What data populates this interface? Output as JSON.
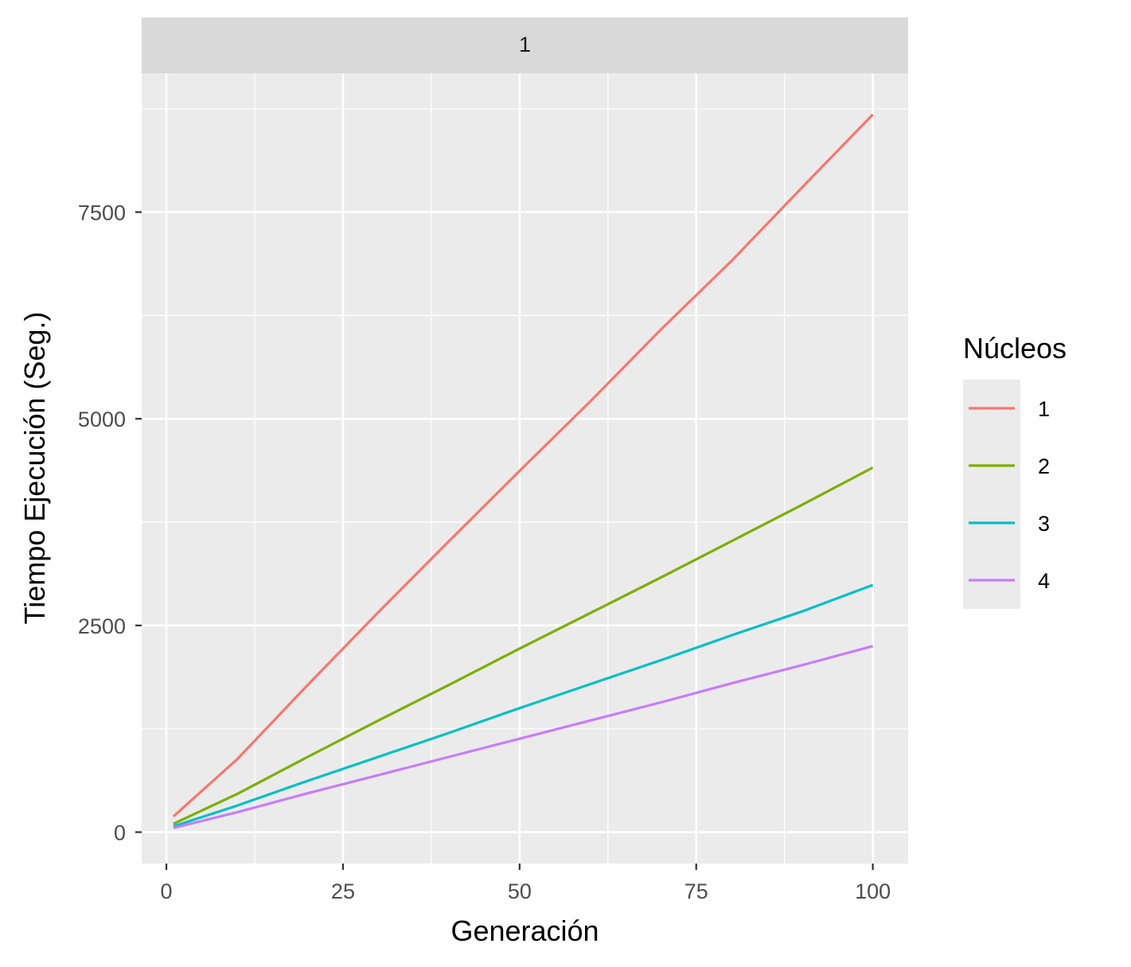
{
  "chart_data": {
    "type": "line",
    "facet_label": "1",
    "xlabel": "Generación",
    "ylabel": "Tiempo Ejecución (Seg.)",
    "xlim": [
      -3.5,
      105
    ],
    "ylim": [
      -380,
      9180
    ],
    "x_ticks": [
      0,
      25,
      50,
      75,
      100
    ],
    "x_tick_labels": [
      "0",
      "25",
      "50",
      "75",
      "100"
    ],
    "x_minor": [
      12.5,
      37.5,
      62.5,
      87.5
    ],
    "y_ticks": [
      0,
      2500,
      5000,
      7500
    ],
    "y_tick_labels": [
      "0",
      "2500",
      "5000",
      "7500"
    ],
    "y_minor": [
      1250,
      3750,
      6250,
      8750
    ],
    "grid": true,
    "legend": {
      "title": "Núcleos",
      "position": "right"
    },
    "x": [
      1,
      10,
      20,
      30,
      40,
      50,
      60,
      70,
      80,
      90,
      100
    ],
    "series": [
      {
        "name": "1",
        "color": "#F8766D",
        "values": [
          190,
          880,
          1780,
          2660,
          3520,
          4370,
          5210,
          6080,
          6910,
          7800,
          8680
        ]
      },
      {
        "name": "2",
        "color": "#7CAE00",
        "values": [
          100,
          460,
          910,
          1350,
          1780,
          2220,
          2650,
          3080,
          3520,
          3960,
          4410
        ]
      },
      {
        "name": "3",
        "color": "#00BFC4",
        "values": [
          70,
          320,
          620,
          910,
          1200,
          1500,
          1790,
          2080,
          2380,
          2670,
          2990
        ]
      },
      {
        "name": "4",
        "color": "#C77CFF",
        "values": [
          50,
          240,
          470,
          690,
          910,
          1130,
          1350,
          1570,
          1800,
          2020,
          2250
        ]
      }
    ]
  }
}
